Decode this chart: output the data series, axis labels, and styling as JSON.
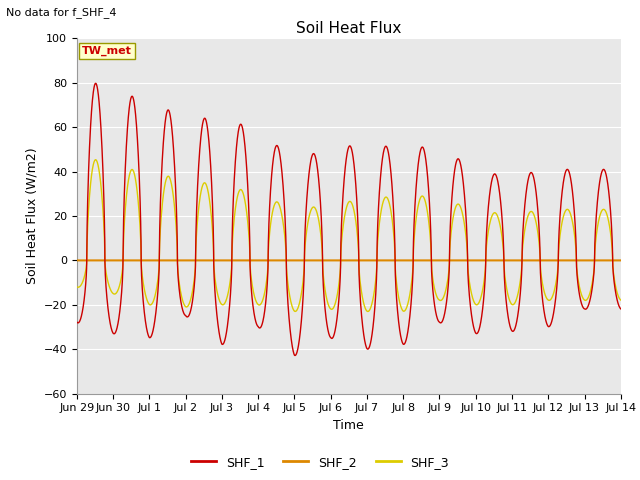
{
  "title": "Soil Heat Flux",
  "note": "No data for f_SHF_4",
  "ylabel": "Soil Heat Flux (W/m2)",
  "xlabel": "Time",
  "annotation": "TW_met",
  "ylim": [
    -60,
    100
  ],
  "yticks": [
    -60,
    -40,
    -20,
    0,
    20,
    40,
    60,
    80,
    100
  ],
  "xtick_labels": [
    "Jun 29",
    "Jun 30",
    "Jul 1",
    "Jul 2",
    "Jul 3",
    "Jul 4",
    "Jul 5",
    "Jul 6",
    "Jul 7",
    "Jul 8",
    "Jul 9",
    "Jul 10",
    "Jul 11",
    "Jul 12",
    "Jul 13",
    "Jul 14"
  ],
  "color_SHF1": "#cc0000",
  "color_SHF2": "#dd8800",
  "color_SHF3": "#ddcc00",
  "bg_color": "#e8e8e8",
  "legend_labels": [
    "SHF_1",
    "SHF_2",
    "SHF_3"
  ],
  "title_fontsize": 11,
  "axis_fontsize": 9,
  "tick_fontsize": 8,
  "note_fontsize": 8
}
